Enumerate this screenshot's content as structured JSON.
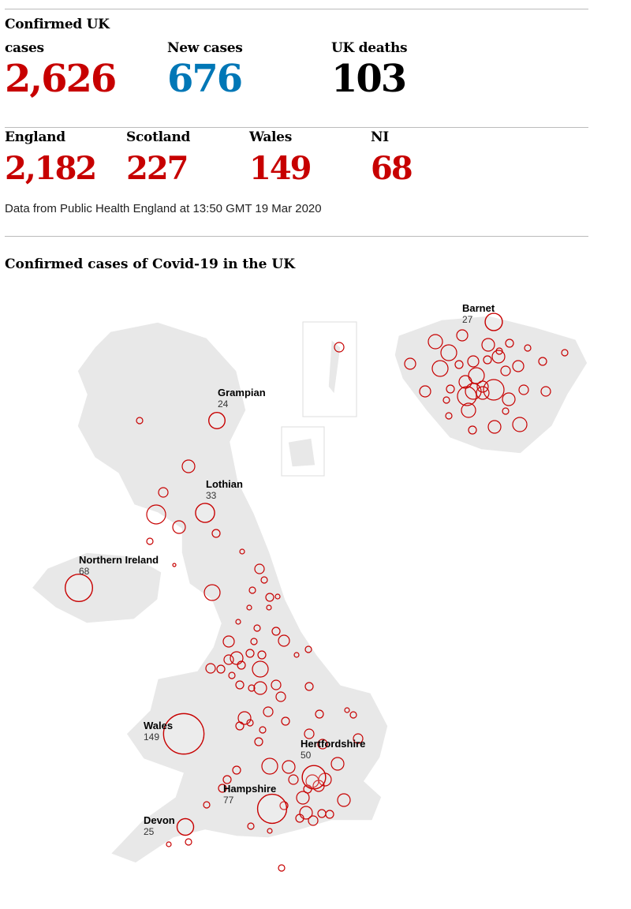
{
  "header": {
    "headline": [
      {
        "label": "Confirmed UK cases",
        "value": "2,626",
        "color": "#c70000"
      },
      {
        "label": "New cases",
        "value": "676",
        "color": "#0077b6"
      },
      {
        "label": "UK deaths",
        "value": "103",
        "color": "#000000"
      }
    ],
    "nations": [
      {
        "label": "England",
        "value": "2,182"
      },
      {
        "label": "Scotland",
        "value": "227"
      },
      {
        "label": "Wales",
        "value": "149"
      },
      {
        "label": "NI",
        "value": "68"
      }
    ],
    "source": "Data from Public Health England at 13:50 GMT 19 Mar 2020"
  },
  "map": {
    "title": "Confirmed cases of Covid-19 in the UK",
    "color": "#c70000",
    "labels": [
      {
        "name": "Barnet",
        "cases": 27
      },
      {
        "name": "Grampian",
        "cases": 24
      },
      {
        "name": "Lothian",
        "cases": 33
      },
      {
        "name": "Northern Ireland",
        "cases": 68
      },
      {
        "name": "Wales",
        "cases": 149
      },
      {
        "name": "Hertfordshire",
        "cases": 50
      },
      {
        "name": "Hampshire",
        "cases": 77
      },
      {
        "name": "Devon",
        "cases": 25
      }
    ]
  }
}
